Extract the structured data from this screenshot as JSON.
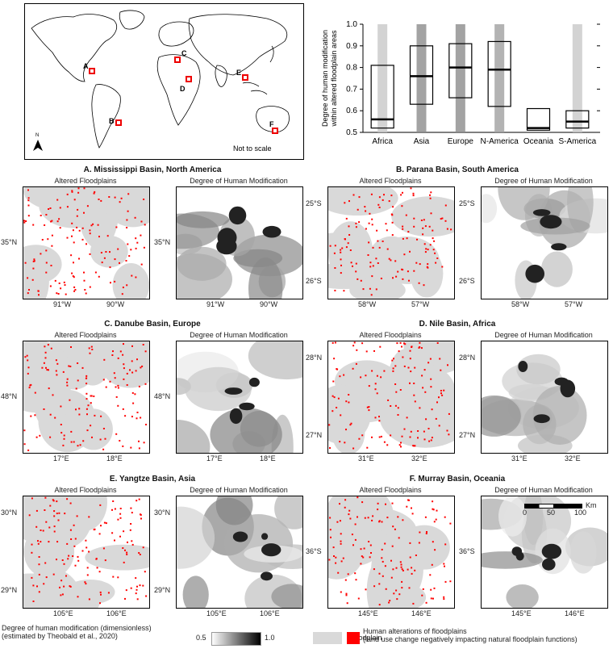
{
  "world_map": {
    "locations": [
      "A",
      "B",
      "C",
      "D",
      "E",
      "F"
    ],
    "north_label": "N",
    "scale_note": "Not to scale"
  },
  "chart_data": {
    "type": "box",
    "categories": [
      "Africa",
      "Asia",
      "Europe",
      "N-America",
      "Oceania",
      "S-America"
    ],
    "ylabel": "Degree of human modification within altered floodplain areas",
    "ylim": [
      0.5,
      1.0
    ],
    "yticks": [
      "0.5",
      "0.6",
      "0.7",
      "0.8",
      "0.9",
      "1.0"
    ],
    "boxes": [
      {
        "name": "Africa",
        "q1": 0.52,
        "median": 0.56,
        "q3": 0.81
      },
      {
        "name": "Asia",
        "q1": 0.63,
        "median": 0.76,
        "q3": 0.9
      },
      {
        "name": "Europe",
        "q1": 0.66,
        "median": 0.8,
        "q3": 0.91
      },
      {
        "name": "N-America",
        "q1": 0.62,
        "median": 0.79,
        "q3": 0.92
      },
      {
        "name": "Oceania",
        "q1": 0.51,
        "median": 0.52,
        "q3": 0.61
      },
      {
        "name": "S-America",
        "q1": 0.52,
        "median": 0.55,
        "q3": 0.6
      }
    ],
    "grid": false
  },
  "basins": [
    {
      "title": "A. Mississippi Basin, North America",
      "left_subtitle": "Altered Floodplains",
      "right_subtitle": "Degree of Human Modification",
      "x_ticks": [
        "91°W",
        "90°W"
      ],
      "y_ticks": [
        "35°N"
      ]
    },
    {
      "title": "B. Parana Basin, South America",
      "left_subtitle": "Altered Floodplains",
      "right_subtitle": "Degree of Human Modification",
      "x_ticks": [
        "58°W",
        "57°W"
      ],
      "y_ticks": [
        "25°S",
        "26°S"
      ]
    },
    {
      "title": "C. Danube Basin, Europe",
      "left_subtitle": "Altered Floodplains",
      "right_subtitle": "Degree of Human Modification",
      "x_ticks": [
        "17°E",
        "18°E"
      ],
      "y_ticks": [
        "48°N"
      ]
    },
    {
      "title": "D. Nile Basin, Africa",
      "left_subtitle": "Altered Floodplains",
      "right_subtitle": "Degree of Human Modification",
      "x_ticks": [
        "31°E",
        "32°E"
      ],
      "y_ticks": [
        "28°N",
        "27°N"
      ]
    },
    {
      "title": "E. Yangtze Basin, Asia",
      "left_subtitle": "Altered Floodplains",
      "right_subtitle": "Degree of Human Modification",
      "x_ticks": [
        "105°E",
        "106°E"
      ],
      "y_ticks": [
        "30°N",
        "29°N"
      ]
    },
    {
      "title": "F. Murray Basin, Oceania",
      "left_subtitle": "Altered Floodplains",
      "right_subtitle": "Degree of Human Modification",
      "x_ticks": [
        "145°E",
        "146°E"
      ],
      "y_ticks": [
        "36°S"
      ]
    }
  ],
  "scale_bar": {
    "labels": [
      "0",
      "50",
      "100"
    ],
    "unit": "Km"
  },
  "legend": {
    "gradient_title": "Degree of human modification (dimensionless)",
    "gradient_note": "(estimated by Theobald et al., 2020)",
    "gradient_min": "0.5",
    "gradient_max": "1.0",
    "floodplain_label": "Floodplain",
    "alteration_label": "Human alterations of floodplains",
    "alteration_note": "(land use change negatively impacting natural floodplain functions)",
    "floodplain_color": "#d9d9d9",
    "alteration_color": "#ff0000"
  }
}
